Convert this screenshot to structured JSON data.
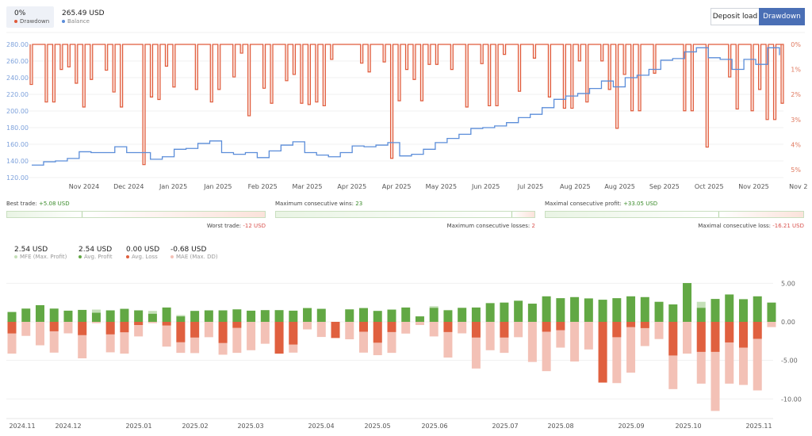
{
  "header": {
    "drawdown_value": "0%",
    "drawdown_label": "Drawdown",
    "balance_value": "265.49 USD",
    "balance_label": "Balance",
    "buttons": {
      "deposit_load": "Deposit load",
      "drawdown": "Drawdown"
    },
    "active_button": "drawdown"
  },
  "colors": {
    "drawdown": "#e05a3a",
    "balance": "#5b8dd9",
    "accent": "#4a6fb5",
    "profit": "#62a844",
    "mfe": "#c5e0b8",
    "loss": "#e0603f",
    "mae": "#f3c1b6"
  },
  "chart_data": [
    {
      "type": "line",
      "left_axis": {
        "ticks": [
          "280.00",
          "260.00",
          "240.00",
          "220.00",
          "200.00",
          "180.00",
          "160.00",
          "140.00",
          "120.00"
        ],
        "range": [
          120,
          280
        ]
      },
      "right_axis": {
        "ticks": [
          "0%",
          "1%",
          "2%",
          "3%",
          "4%",
          "5%"
        ],
        "range": [
          0,
          5
        ]
      },
      "x_ticks": [
        "Nov 2024",
        "Dec 2024",
        "Jan 2025",
        "Jan 2025",
        "Feb 2025",
        "Mar 2025",
        "Apr 2025",
        "Apr 2025",
        "May 2025",
        "Jun 2025",
        "Jul 2025",
        "Aug 2025",
        "Aug 2025",
        "Sep 2025",
        "Oct 2025",
        "Nov 2025",
        "Nov 2"
      ],
      "grid": true,
      "series": [
        {
          "name": "Balance",
          "axis": "left",
          "values": [
            135,
            139,
            140,
            143,
            151,
            150,
            150,
            157,
            150,
            150,
            142,
            145,
            154,
            155,
            161,
            164,
            150,
            148,
            150,
            144,
            152,
            159,
            163,
            150,
            147,
            145,
            150,
            158,
            157,
            159,
            162,
            146,
            148,
            154,
            162,
            167,
            172,
            179,
            180,
            182,
            186,
            192,
            196,
            204,
            214,
            218,
            221,
            227,
            236,
            229,
            240,
            243,
            250,
            261,
            263,
            271,
            276,
            264,
            262,
            250,
            262,
            256,
            276,
            267
          ]
        },
        {
          "name": "Drawdown",
          "axis": "right",
          "values": [
            1.6,
            0,
            2.3,
            2.3,
            1.0,
            0.9,
            1.55,
            2.5,
            1.4,
            0,
            1.03,
            1.9,
            2.5,
            0,
            0,
            4.8,
            2.1,
            2.2,
            0.87,
            1.7,
            0,
            0,
            1.8,
            0,
            2.3,
            1.8,
            0,
            1.3,
            0.35,
            2.85,
            0,
            1.75,
            2.35,
            0,
            1.45,
            1.2,
            2.35,
            2.4,
            2.3,
            2.45,
            0.6,
            0,
            0,
            0,
            0.75,
            1.1,
            0,
            0.7,
            4.55,
            2.25,
            1.0,
            1.4,
            2.25,
            0.8,
            0.8,
            0,
            1.0,
            0,
            2.5,
            0,
            0.77,
            2.45,
            2.45,
            0.4,
            0,
            1.87,
            0,
            0.55,
            0,
            2.1,
            0,
            2.55,
            2.55,
            0.66,
            2.3,
            0,
            0.66,
            1.8,
            3.35,
            1.2,
            2.65,
            2.65,
            0,
            1.15,
            0,
            0,
            0,
            2.65,
            2.65,
            0,
            4.1,
            0,
            0,
            1.3,
            2.58,
            0,
            2.65,
            1.8,
            3.0,
            3.0,
            2.35
          ]
        }
      ]
    },
    {
      "type": "bar",
      "y_ticks": [
        "5.00",
        "0.00",
        "-5.00",
        "-10.00"
      ],
      "ylim": [
        -12.5,
        5.5
      ],
      "x_ticks": [
        "2024.11",
        "2024.12",
        "2025.01",
        "2025.02",
        "2025.03",
        "2025.04",
        "2025.05",
        "2025.06",
        "2025.07",
        "2025.08",
        "2025.09",
        "2025.10",
        "2025.11"
      ],
      "grid": true,
      "series": [
        {
          "name": "MFE (Max. Profit)",
          "values": [
            1.28,
            1.72,
            2.16,
            1.72,
            1.45,
            1.55,
            1.59,
            1.49,
            1.69,
            1.49,
            1.42,
            1.86,
            0.88,
            1.42,
            1.49,
            1.49,
            1.62,
            1.45,
            1.52,
            1.52,
            1.45,
            1.79,
            1.69,
            0,
            1.62,
            1.79,
            1.42,
            1.59,
            1.86,
            0.71,
            2.03,
            1.55,
            1.82,
            1.86,
            2.43,
            2.5,
            2.74,
            2.36,
            3.31,
            3.07,
            3.21,
            3.04,
            2.87,
            3.07,
            3.31,
            3.21,
            2.6,
            2.26,
            5.03,
            2.6,
            2.97,
            3.55,
            2.94,
            3.31,
            2.5
          ]
        },
        {
          "name": "Avg. Profit",
          "values": [
            1.28,
            1.72,
            2.16,
            1.72,
            1.45,
            1.55,
            1.18,
            1.49,
            1.69,
            1.49,
            1.05,
            1.86,
            0.71,
            1.42,
            1.49,
            1.49,
            1.62,
            1.45,
            1.52,
            1.52,
            1.45,
            1.79,
            1.69,
            0,
            1.62,
            1.79,
            1.42,
            1.59,
            1.86,
            0.71,
            1.82,
            1.49,
            1.82,
            1.86,
            2.43,
            2.5,
            2.74,
            2.36,
            3.31,
            3.07,
            3.21,
            3.04,
            2.87,
            3.07,
            3.31,
            3.21,
            2.6,
            2.26,
            5.03,
            1.82,
            2.97,
            3.55,
            2.94,
            3.31,
            2.5
          ]
        },
        {
          "name": "Avg. Loss",
          "values": [
            -1.5,
            0,
            0,
            -1.22,
            0,
            -1.72,
            0,
            -1.62,
            -1.35,
            -0.41,
            0,
            -0.47,
            -2.64,
            -2.03,
            0,
            -2.74,
            -0.78,
            0,
            0,
            -4.12,
            -2.94,
            0,
            0,
            -2.09,
            0,
            -1.28,
            -2.7,
            -1.32,
            0,
            0,
            0,
            -1.32,
            0,
            -2.03,
            0,
            -2.03,
            0,
            0,
            -1.28,
            -1.08,
            0,
            0,
            -7.87,
            -1.99,
            -0.68,
            -0.81,
            0,
            -4.36,
            0,
            -3.89,
            -3.89,
            -2.67,
            -3.34,
            -2.2,
            0
          ]
        },
        {
          "name": "MAE (Max. DD)",
          "values": [
            -4.12,
            -1.82,
            -3.04,
            -3.99,
            -1.49,
            -4.73,
            -0.17,
            -3.95,
            -4.12,
            -1.89,
            -0.17,
            -3.21,
            -4.02,
            -4.05,
            -1.99,
            -4.26,
            -4.02,
            -3.68,
            -2.84,
            -4.12,
            -3.99,
            -0.98,
            -1.96,
            -2.09,
            -2.26,
            -3.99,
            -4.32,
            -4.02,
            -1.52,
            -0.41,
            -1.89,
            -4.63,
            -1.49,
            -6.05,
            -3.68,
            -4.02,
            -1.99,
            -5.2,
            -6.39,
            -3.34,
            -5.14,
            -3.58,
            -7.87,
            -7.94,
            -6.59,
            -3.14,
            -2.23,
            -8.72,
            -4.12,
            -8.01,
            -11.55,
            -8.01,
            -8.18,
            -8.89,
            -0.68
          ]
        }
      ]
    }
  ],
  "stats": {
    "best_trade": {
      "label": "Best trade:",
      "value": "+5.08 USD",
      "fill": 0.29
    },
    "worst_trade": {
      "label": "Worst trade:",
      "value": "-12 USD"
    },
    "max_consec_wins": {
      "label": "Maximum consecutive wins:",
      "value": "23",
      "fill": 0.91
    },
    "max_consec_losses": {
      "label": "Maximum consecutive losses:",
      "value": "2"
    },
    "max_consec_profit": {
      "label": "Maximal consecutive profit:",
      "value": "+33.05 USD",
      "fill": 0.67
    },
    "max_consec_loss": {
      "label": "Maximal consecutive loss:",
      "value": "-16.21 USD"
    }
  },
  "summary": [
    {
      "value": "2.54 USD",
      "label": "MFE (Max. Profit)"
    },
    {
      "value": "2.54 USD",
      "label": "Avg. Profit"
    },
    {
      "value": "0.00 USD",
      "label": "Avg. Loss"
    },
    {
      "value": "-0.68 USD",
      "label": "MAE (Max. DD)"
    }
  ]
}
